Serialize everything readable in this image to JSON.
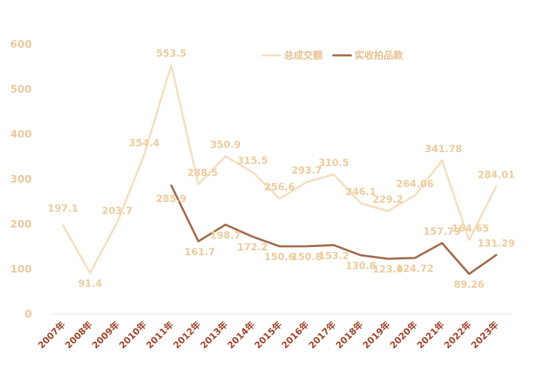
{
  "chart_data": {
    "type": "line",
    "categories": [
      "2007年",
      "2008年",
      "2009年",
      "2010年",
      "2011年",
      "2012年",
      "2013年",
      "2014年",
      "2015年",
      "2016年",
      "2017年",
      "2018年",
      "2019年",
      "2020年",
      "2021年",
      "2022年",
      "2023年"
    ],
    "series": [
      {
        "name": "总成交额",
        "color": "#f5dfc0",
        "values": [
          197.1,
          91.4,
          203.7,
          354.4,
          553.5,
          288.5,
          350.9,
          315.5,
          256.6,
          293.7,
          310.5,
          246.1,
          229.2,
          264.06,
          341.78,
          164.65,
          284.01
        ],
        "labels": [
          "197.1",
          "91.4",
          "203.7",
          "354.4",
          "553.5",
          "288.5",
          "350.9",
          "315.5",
          "256.6",
          "293.7",
          "310.5",
          "246.1",
          "229.2",
          "264.06",
          "341.78",
          "164.65",
          "284.01"
        ]
      },
      {
        "name": "实收拍品款",
        "color": "#a06a4a",
        "values": [
          null,
          null,
          null,
          null,
          285.9,
          161.7,
          198.7,
          172.2,
          150.6,
          150.8,
          153.2,
          130.8,
          123.0,
          124.72,
          157.79,
          89.26,
          131.29
        ],
        "labels": [
          null,
          null,
          null,
          null,
          "285.9",
          "161.7",
          "198.7",
          "172.2",
          "150.6",
          "150.8",
          "153.2",
          "130.8",
          "123.0",
          "124.72",
          "157.79",
          "89.26",
          "131.29"
        ]
      }
    ],
    "yticks": [
      "0",
      "100",
      "200",
      "300",
      "400",
      "500",
      "600"
    ],
    "ylim": [
      0,
      600
    ],
    "grid": false,
    "legend": "top-right",
    "colors": {
      "ytick": "#ecc9a0",
      "xtick": "#a0442a",
      "label": "#edcc9e",
      "axis": "#e0e0e0"
    }
  }
}
